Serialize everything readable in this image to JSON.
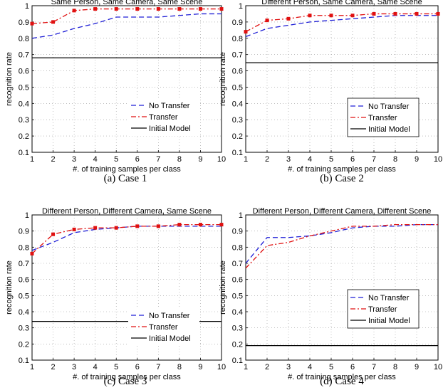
{
  "chart_data": [
    {
      "type": "line",
      "title": "Same Person, Same Camera, Same Scene",
      "caption": "(a)  Case 1",
      "xlabel": "#. of training samples per class",
      "ylabel": "recognition rate",
      "xlim": [
        1,
        10
      ],
      "ylim": [
        0.1,
        1
      ],
      "xticks": [
        "1",
        "2",
        "3",
        "4",
        "5",
        "6",
        "7",
        "8",
        "9",
        "10"
      ],
      "yticks": [
        "0.1",
        "0.2",
        "0.3",
        "0.4",
        "0.5",
        "0.6",
        "0.7",
        "0.8",
        "0.9",
        "1"
      ],
      "grid": true,
      "legend_position": "bottom-right",
      "x": [
        1,
        2,
        3,
        4,
        5,
        6,
        7,
        8,
        9,
        10
      ],
      "series": [
        {
          "name": "No Transfer",
          "color": "#1f1fd6",
          "dash": "dash",
          "values": [
            0.8,
            0.82,
            0.86,
            0.89,
            0.93,
            0.93,
            0.93,
            0.94,
            0.95,
            0.95
          ]
        },
        {
          "name": "Transfer",
          "color": "#e01010",
          "dash": "dashdot",
          "marker": true,
          "values": [
            0.89,
            0.9,
            0.97,
            0.98,
            0.98,
            0.98,
            0.98,
            0.98,
            0.98,
            0.98
          ]
        },
        {
          "name": "Initial Model",
          "color": "#000000",
          "dash": "solid",
          "values": [
            0.68,
            0.68,
            0.68,
            0.68,
            0.68,
            0.68,
            0.68,
            0.68,
            0.68,
            0.68
          ]
        }
      ]
    },
    {
      "type": "line",
      "title": "Different Person, Same Camera, Same Scene",
      "caption": "(b)  Case 2",
      "xlabel": "#. of training samples per class",
      "ylabel": "recognition rate",
      "xlim": [
        1,
        10
      ],
      "ylim": [
        0.1,
        1
      ],
      "xticks": [
        "1",
        "2",
        "3",
        "4",
        "5",
        "6",
        "7",
        "8",
        "9",
        "10"
      ],
      "yticks": [
        "0.1",
        "0.2",
        "0.3",
        "0.4",
        "0.5",
        "0.6",
        "0.7",
        "0.8",
        "0.9",
        "1"
      ],
      "grid": true,
      "legend_position": "bottom-right",
      "x": [
        1,
        2,
        3,
        4,
        5,
        6,
        7,
        8,
        9,
        10
      ],
      "series": [
        {
          "name": "No Transfer",
          "color": "#1f1fd6",
          "dash": "dash",
          "values": [
            0.81,
            0.86,
            0.88,
            0.9,
            0.91,
            0.92,
            0.93,
            0.94,
            0.94,
            0.94
          ]
        },
        {
          "name": "Transfer",
          "color": "#e01010",
          "dash": "dashdot",
          "marker": true,
          "values": [
            0.84,
            0.91,
            0.92,
            0.94,
            0.94,
            0.94,
            0.95,
            0.95,
            0.95,
            0.95
          ]
        },
        {
          "name": "Initial Model",
          "color": "#000000",
          "dash": "solid",
          "values": [
            0.65,
            0.65,
            0.65,
            0.65,
            0.65,
            0.65,
            0.65,
            0.65,
            0.65,
            0.65
          ]
        }
      ]
    },
    {
      "type": "line",
      "title": "Different Person, Different Camera, Same Scene",
      "caption": "(c)  Case 3",
      "xlabel": "#. of training samples per class",
      "ylabel": "recognition rate",
      "xlim": [
        1,
        10
      ],
      "ylim": [
        0.1,
        1
      ],
      "xticks": [
        "1",
        "2",
        "3",
        "4",
        "5",
        "6",
        "7",
        "8",
        "9",
        "10"
      ],
      "yticks": [
        "0.1",
        "0.2",
        "0.3",
        "0.4",
        "0.5",
        "0.6",
        "0.7",
        "0.8",
        "0.9",
        "1"
      ],
      "grid": true,
      "legend_position": "bottom-right",
      "x": [
        1,
        2,
        3,
        4,
        5,
        6,
        7,
        8,
        9,
        10
      ],
      "series": [
        {
          "name": "No Transfer",
          "color": "#1f1fd6",
          "dash": "dash",
          "values": [
            0.78,
            0.83,
            0.89,
            0.91,
            0.92,
            0.93,
            0.93,
            0.93,
            0.93,
            0.93
          ]
        },
        {
          "name": "Transfer",
          "color": "#e01010",
          "dash": "dashdot",
          "marker": true,
          "values": [
            0.76,
            0.88,
            0.91,
            0.92,
            0.92,
            0.93,
            0.93,
            0.94,
            0.94,
            0.94
          ]
        },
        {
          "name": "Initial Model",
          "color": "#000000",
          "dash": "solid",
          "values": [
            0.34,
            0.34,
            0.34,
            0.34,
            0.34,
            0.34,
            0.34,
            0.34,
            0.34,
            0.34
          ]
        }
      ]
    },
    {
      "type": "line",
      "title": "Different Person, Different Camera, Different Scene",
      "caption": "(d)  Case 4",
      "xlabel": "#. of training samples per class",
      "ylabel": "recognition rate",
      "xlim": [
        1,
        10
      ],
      "ylim": [
        0.1,
        1
      ],
      "xticks": [
        "1",
        "2",
        "3",
        "4",
        "5",
        "6",
        "7",
        "8",
        "9",
        "10"
      ],
      "yticks": [
        "0.1",
        "0.2",
        "0.3",
        "0.4",
        "0.5",
        "0.6",
        "0.7",
        "0.8",
        "0.9",
        "1"
      ],
      "grid": true,
      "legend_position": "bottom-right",
      "x": [
        1,
        2,
        3,
        4,
        5,
        6,
        7,
        8,
        9,
        10
      ],
      "series": [
        {
          "name": "No Transfer",
          "color": "#1f1fd6",
          "dash": "dash",
          "values": [
            0.7,
            0.86,
            0.86,
            0.87,
            0.89,
            0.92,
            0.93,
            0.93,
            0.94,
            0.94
          ]
        },
        {
          "name": "Transfer",
          "color": "#e01010",
          "dash": "dashdot",
          "marker": false,
          "values": [
            0.67,
            0.81,
            0.83,
            0.87,
            0.9,
            0.93,
            0.93,
            0.94,
            0.94,
            0.94
          ]
        },
        {
          "name": "Initial Model",
          "color": "#000000",
          "dash": "solid",
          "values": [
            0.19,
            0.19,
            0.19,
            0.19,
            0.19,
            0.19,
            0.19,
            0.19,
            0.19,
            0.19
          ]
        }
      ]
    }
  ]
}
